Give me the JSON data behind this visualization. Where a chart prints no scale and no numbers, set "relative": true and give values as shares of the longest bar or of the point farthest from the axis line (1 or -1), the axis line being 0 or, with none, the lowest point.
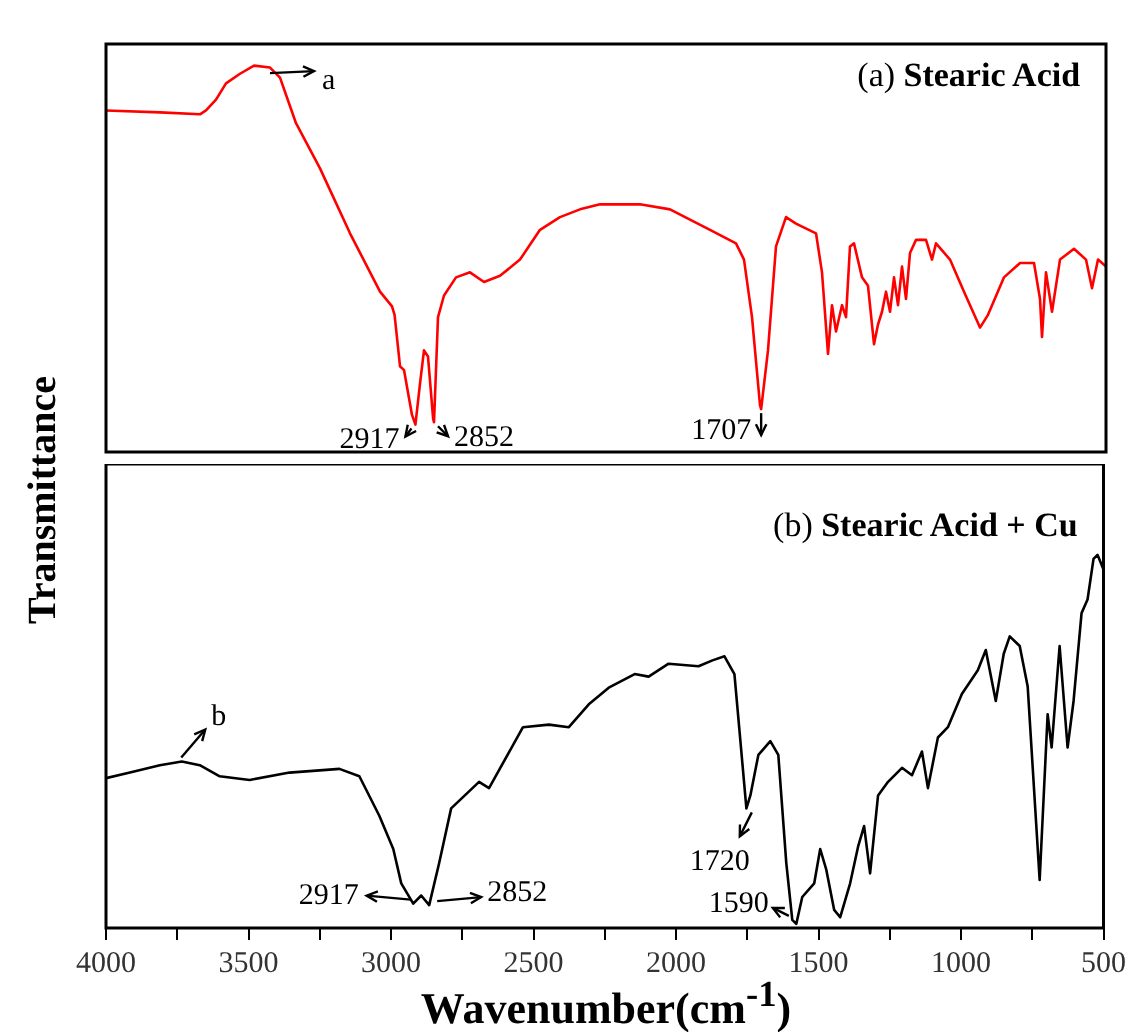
{
  "chart_data": [
    {
      "type": "line",
      "title": "(a) Stearic Acid",
      "ylabel": "Transmittance",
      "relative": true,
      "tick_labels": false,
      "xlim": [
        4000,
        500
      ],
      "x": [
        4000,
        3811,
        3671,
        3650,
        3615,
        3580,
        3531,
        3482,
        3426,
        3391,
        3335,
        3251,
        3146,
        3041,
        2999,
        2990,
        2971,
        2957,
        2929,
        2917,
        2901,
        2887,
        2873,
        2855,
        2852,
        2838,
        2817,
        2775,
        2726,
        2677,
        2621,
        2551,
        2481,
        2411,
        2341,
        2271,
        2236,
        2131,
        2026,
        1886,
        1795,
        1767,
        1739,
        1711,
        1707,
        1683,
        1655,
        1620,
        1585,
        1515,
        1494,
        1473,
        1459,
        1445,
        1424,
        1410,
        1396,
        1382,
        1354,
        1333,
        1312,
        1298,
        1284,
        1270,
        1256,
        1242,
        1228,
        1214,
        1200,
        1186,
        1165,
        1130,
        1109,
        1095,
        1046,
        997,
        941,
        913,
        857,
        801,
        752,
        731,
        724,
        710,
        689,
        661,
        612,
        570,
        549,
        528,
        500
      ],
      "series": [
        {
          "color": "#ff0000",
          "values": [
            0.884,
            0.879,
            0.874,
            0.884,
            0.912,
            0.954,
            0.979,
            1.0,
            0.995,
            0.969,
            0.851,
            0.734,
            0.566,
            0.415,
            0.377,
            0.355,
            0.222,
            0.212,
            0.096,
            0.071,
            0.177,
            0.263,
            0.247,
            0.086,
            0.077,
            0.349,
            0.405,
            0.452,
            0.465,
            0.44,
            0.456,
            0.498,
            0.575,
            0.608,
            0.628,
            0.641,
            0.641,
            0.641,
            0.628,
            0.575,
            0.54,
            0.498,
            0.349,
            0.121,
            0.111,
            0.263,
            0.532,
            0.608,
            0.591,
            0.566,
            0.465,
            0.254,
            0.38,
            0.312,
            0.38,
            0.349,
            0.532,
            0.54,
            0.452,
            0.43,
            0.279,
            0.33,
            0.363,
            0.415,
            0.363,
            0.452,
            0.38,
            0.48,
            0.396,
            0.515,
            0.549,
            0.549,
            0.498,
            0.54,
            0.498,
            0.415,
            0.322,
            0.355,
            0.452,
            0.489,
            0.489,
            0.396,
            0.298,
            0.465,
            0.363,
            0.498,
            0.526,
            0.498,
            0.424,
            0.498,
            0.48
          ]
        }
      ],
      "annotations": [
        {
          "text": "a",
          "x": 3440,
          "y": 0.991
        },
        {
          "text": "2917",
          "x": 2917,
          "y": 0.071
        },
        {
          "text": "2852",
          "x": 2852,
          "y": 0.077
        },
        {
          "text": "1707",
          "x": 1707,
          "y": 0.111
        }
      ]
    },
    {
      "type": "line",
      "title": "(b) Stearic Acid + Cu",
      "xlabel": "Wavenumber(cm$^{-1}$)",
      "relative": true,
      "tick_labels": "x",
      "xlim": [
        4000,
        500
      ],
      "xticks": [
        4000,
        {
          "value": 3750,
          "label": null
        },
        3500,
        {
          "value": 3250,
          "label": null
        },
        3000,
        {
          "value": 2750,
          "label": null
        },
        2500,
        {
          "value": 2250,
          "label": null
        },
        2000,
        {
          "value": 1750,
          "label": null
        },
        1500,
        {
          "value": 1250,
          "label": null
        },
        1000,
        {
          "value": 750,
          "label": null
        },
        500
      ],
      "x": [
        4000,
        3916,
        3811,
        3734,
        3671,
        3601,
        3496,
        3356,
        3181,
        3111,
        3041,
        2992,
        2964,
        2922,
        2894,
        2866,
        2831,
        2789,
        2691,
        2656,
        2537,
        2446,
        2376,
        2306,
        2236,
        2145,
        2096,
        2026,
        1921,
        1872,
        1830,
        1795,
        1774,
        1753,
        1739,
        1711,
        1669,
        1641,
        1613,
        1592,
        1578,
        1557,
        1515,
        1494,
        1473,
        1445,
        1424,
        1389,
        1361,
        1340,
        1319,
        1291,
        1256,
        1207,
        1172,
        1137,
        1116,
        1081,
        1046,
        997,
        941,
        913,
        878,
        850,
        829,
        794,
        766,
        724,
        696,
        682,
        654,
        626,
        605,
        577,
        556,
        535,
        521,
        500
      ],
      "series": [
        {
          "color": "#000000",
          "values": [
            0.395,
            0.41,
            0.43,
            0.44,
            0.43,
            0.4,
            0.39,
            0.41,
            0.42,
            0.4,
            0.293,
            0.203,
            0.11,
            0.055,
            0.077,
            0.051,
            0.165,
            0.313,
            0.385,
            0.368,
            0.533,
            0.54,
            0.533,
            0.595,
            0.64,
            0.677,
            0.67,
            0.705,
            0.698,
            0.714,
            0.725,
            0.677,
            0.495,
            0.313,
            0.348,
            0.458,
            0.495,
            0.458,
            0.165,
            0.011,
            0,
            0.073,
            0.11,
            0.203,
            0.148,
            0.038,
            0.018,
            0.11,
            0.21,
            0.265,
            0.137,
            0.348,
            0.385,
            0.423,
            0.403,
            0.467,
            0.368,
            0.505,
            0.533,
            0.623,
            0.687,
            0.742,
            0.604,
            0.732,
            0.779,
            0.753,
            0.643,
            0.119,
            0.568,
            0.478,
            0.753,
            0.478,
            0.604,
            0.842,
            0.879,
            0.989,
            1.0,
            0.96
          ]
        }
      ],
      "annotations": [
        {
          "text": "b",
          "x": 3750,
          "y": 0.44
        },
        {
          "text": "2917",
          "x": 2917,
          "y": 0.055
        },
        {
          "text": "2852",
          "x": 2852,
          "y": 0.051
        },
        {
          "text": "1720",
          "x": 1720,
          "y": 0.313
        },
        {
          "text": "1590",
          "x": 1590,
          "y": 0.011
        }
      ]
    }
  ]
}
